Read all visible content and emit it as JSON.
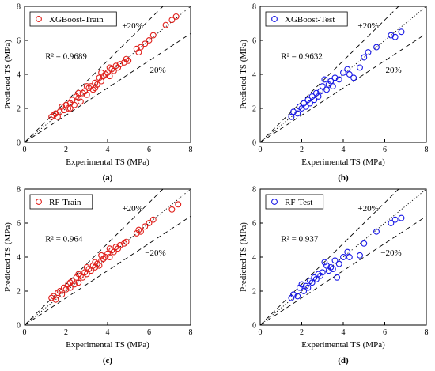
{
  "chart_data": [
    {
      "panel_label": "(a)",
      "type": "scatter",
      "xlabel": "Experimental TS (MPa)",
      "ylabel": "Predicted TS (MPa)",
      "xlim": [
        0,
        8
      ],
      "ylim": [
        0,
        8
      ],
      "xticks": [
        "0",
        "2",
        "4",
        "6",
        "8"
      ],
      "yticks": [
        "0",
        "2",
        "4",
        "6",
        "8"
      ],
      "legend": {
        "label": "XGBoost-Train",
        "placement": "top-left",
        "marker": "open-circle"
      },
      "r2_text": "R² = 0.9689",
      "band_labels": [
        "+20%",
        "−20%"
      ],
      "marker_color": "#e0201b",
      "series": [
        {
          "name": "XGBoost-Train",
          "points": [
            [
              1.3,
              1.5
            ],
            [
              1.4,
              1.6
            ],
            [
              1.5,
              1.7
            ],
            [
              1.6,
              1.5
            ],
            [
              1.7,
              1.8
            ],
            [
              1.8,
              2.1
            ],
            [
              1.9,
              1.9
            ],
            [
              2.0,
              2.2
            ],
            [
              2.1,
              2.0
            ],
            [
              2.2,
              2.3
            ],
            [
              2.3,
              2.5
            ],
            [
              2.4,
              2.2
            ],
            [
              2.5,
              2.7
            ],
            [
              2.6,
              2.6
            ],
            [
              2.7,
              2.4
            ],
            [
              2.8,
              2.9
            ],
            [
              2.9,
              3.0
            ],
            [
              3.0,
              2.8
            ],
            [
              3.1,
              3.2
            ],
            [
              3.2,
              3.3
            ],
            [
              3.3,
              3.1
            ],
            [
              3.4,
              3.5
            ],
            [
              3.5,
              3.4
            ],
            [
              3.6,
              3.8
            ],
            [
              3.7,
              3.6
            ],
            [
              3.8,
              3.9
            ],
            [
              3.9,
              4.0
            ],
            [
              4.0,
              4.1
            ],
            [
              4.1,
              3.9
            ],
            [
              4.2,
              4.3
            ],
            [
              4.3,
              4.2
            ],
            [
              4.4,
              4.5
            ],
            [
              4.5,
              4.4
            ],
            [
              4.6,
              4.6
            ],
            [
              4.8,
              4.7
            ],
            [
              4.9,
              4.9
            ],
            [
              5.0,
              4.8
            ],
            [
              5.4,
              5.5
            ],
            [
              5.5,
              5.3
            ],
            [
              5.6,
              5.6
            ],
            [
              5.8,
              5.8
            ],
            [
              6.0,
              6.0
            ],
            [
              6.2,
              6.3
            ],
            [
              6.8,
              6.9
            ],
            [
              7.1,
              7.2
            ],
            [
              7.3,
              7.4
            ],
            [
              2.2,
              2.0
            ],
            [
              2.6,
              2.9
            ],
            [
              3.0,
              3.3
            ],
            [
              3.4,
              3.2
            ],
            [
              3.7,
              4.1
            ],
            [
              4.1,
              4.4
            ]
          ]
        }
      ]
    },
    {
      "panel_label": "(b)",
      "type": "scatter",
      "xlabel": "Experimental TS (MPa)",
      "ylabel": "Predicted TS (MPa)",
      "xlim": [
        0,
        8
      ],
      "ylim": [
        0,
        8
      ],
      "xticks": [
        "0",
        "2",
        "4",
        "6",
        "8"
      ],
      "yticks": [
        "0",
        "2",
        "4",
        "6",
        "8"
      ],
      "legend": {
        "label": "XGBoost-Test",
        "placement": "top-left",
        "marker": "open-circle"
      },
      "r2_text": "R² = 0.9632",
      "band_labels": [
        "+20%",
        "−20%"
      ],
      "marker_color": "#1a1ae6",
      "series": [
        {
          "name": "XGBoost-Test",
          "points": [
            [
              1.5,
              1.5
            ],
            [
              1.6,
              1.8
            ],
            [
              1.8,
              1.7
            ],
            [
              1.9,
              2.1
            ],
            [
              2.0,
              2.0
            ],
            [
              2.1,
              2.3
            ],
            [
              2.2,
              2.1
            ],
            [
              2.3,
              2.5
            ],
            [
              2.4,
              2.3
            ],
            [
              2.5,
              2.7
            ],
            [
              2.6,
              2.5
            ],
            [
              2.7,
              2.9
            ],
            [
              2.8,
              2.7
            ],
            [
              2.9,
              3.0
            ],
            [
              3.0,
              3.3
            ],
            [
              3.1,
              3.7
            ],
            [
              3.2,
              3.1
            ],
            [
              3.3,
              3.4
            ],
            [
              3.4,
              3.6
            ],
            [
              3.5,
              3.3
            ],
            [
              3.6,
              3.8
            ],
            [
              3.8,
              3.7
            ],
            [
              4.0,
              4.1
            ],
            [
              4.2,
              4.3
            ],
            [
              4.3,
              4.0
            ],
            [
              4.5,
              3.8
            ],
            [
              4.8,
              4.4
            ],
            [
              5.0,
              5.0
            ],
            [
              5.2,
              5.3
            ],
            [
              5.6,
              5.6
            ],
            [
              6.3,
              6.3
            ],
            [
              6.5,
              6.2
            ],
            [
              6.8,
              6.5
            ]
          ]
        }
      ]
    },
    {
      "panel_label": "(c)",
      "type": "scatter",
      "xlabel": "Experimental TS (MPa)",
      "ylabel": "Predicted TS (MPa)",
      "xlim": [
        0,
        8
      ],
      "ylim": [
        0,
        8
      ],
      "xticks": [
        "0",
        "2",
        "4",
        "6",
        "8"
      ],
      "yticks": [
        "0",
        "2",
        "4",
        "6",
        "8"
      ],
      "legend": {
        "label": "RF-Train",
        "placement": "top-left",
        "marker": "open-circle"
      },
      "r2_text": "R² = 0.964",
      "band_labels": [
        "+20%",
        "−20%"
      ],
      "marker_color": "#e0201b",
      "series": [
        {
          "name": "RF-Train",
          "points": [
            [
              1.3,
              1.6
            ],
            [
              1.4,
              1.7
            ],
            [
              1.5,
              1.5
            ],
            [
              1.6,
              1.9
            ],
            [
              1.7,
              2.0
            ],
            [
              1.8,
              1.8
            ],
            [
              1.9,
              2.2
            ],
            [
              2.0,
              2.1
            ],
            [
              2.1,
              2.4
            ],
            [
              2.2,
              2.2
            ],
            [
              2.3,
              2.6
            ],
            [
              2.4,
              2.4
            ],
            [
              2.5,
              2.8
            ],
            [
              2.6,
              2.5
            ],
            [
              2.7,
              2.9
            ],
            [
              2.8,
              2.8
            ],
            [
              2.9,
              3.1
            ],
            [
              3.0,
              3.0
            ],
            [
              3.1,
              3.3
            ],
            [
              3.2,
              3.2
            ],
            [
              3.3,
              3.5
            ],
            [
              3.4,
              3.4
            ],
            [
              3.5,
              3.6
            ],
            [
              3.6,
              3.5
            ],
            [
              3.7,
              3.8
            ],
            [
              3.8,
              3.9
            ],
            [
              3.9,
              4.0
            ],
            [
              4.0,
              4.2
            ],
            [
              4.1,
              4.0
            ],
            [
              4.2,
              4.4
            ],
            [
              4.3,
              4.3
            ],
            [
              4.4,
              4.6
            ],
            [
              4.5,
              4.5
            ],
            [
              4.6,
              4.7
            ],
            [
              4.8,
              4.8
            ],
            [
              4.9,
              4.9
            ],
            [
              5.4,
              5.4
            ],
            [
              5.5,
              5.6
            ],
            [
              5.6,
              5.5
            ],
            [
              5.8,
              5.8
            ],
            [
              6.0,
              6.0
            ],
            [
              6.2,
              6.2
            ],
            [
              7.1,
              6.8
            ],
            [
              7.4,
              7.1
            ],
            [
              2.2,
              2.5
            ],
            [
              2.6,
              3.0
            ],
            [
              3.0,
              3.4
            ],
            [
              3.4,
              3.7
            ],
            [
              3.7,
              4.1
            ],
            [
              4.1,
              4.5
            ]
          ]
        }
      ]
    },
    {
      "panel_label": "(d)",
      "type": "scatter",
      "xlabel": "Experimental TS (MPa)",
      "ylabel": "Predicted TS (MPa)",
      "xlim": [
        0,
        8
      ],
      "ylim": [
        0,
        8
      ],
      "xticks": [
        "0",
        "2",
        "4",
        "6",
        "8"
      ],
      "yticks": [
        "0",
        "2",
        "4",
        "6",
        "8"
      ],
      "legend": {
        "label": "RF-Test",
        "placement": "top-left",
        "marker": "open-circle"
      },
      "r2_text": "R² = 0.937",
      "band_labels": [
        "+20%",
        "−20%"
      ],
      "marker_color": "#1a1ae6",
      "series": [
        {
          "name": "RF-Test",
          "points": [
            [
              1.5,
              1.6
            ],
            [
              1.6,
              1.8
            ],
            [
              1.8,
              1.7
            ],
            [
              1.9,
              2.2
            ],
            [
              2.0,
              2.4
            ],
            [
              2.1,
              2.0
            ],
            [
              2.2,
              2.3
            ],
            [
              2.3,
              2.2
            ],
            [
              2.4,
              2.6
            ],
            [
              2.5,
              2.5
            ],
            [
              2.6,
              2.8
            ],
            [
              2.7,
              2.7
            ],
            [
              2.8,
              3.0
            ],
            [
              2.9,
              2.9
            ],
            [
              3.0,
              3.1
            ],
            [
              3.1,
              3.7
            ],
            [
              3.2,
              3.5
            ],
            [
              3.3,
              3.2
            ],
            [
              3.4,
              3.4
            ],
            [
              3.5,
              3.3
            ],
            [
              3.6,
              3.8
            ],
            [
              3.7,
              2.8
            ],
            [
              3.8,
              3.6
            ],
            [
              4.0,
              4.0
            ],
            [
              4.2,
              4.3
            ],
            [
              4.3,
              4.0
            ],
            [
              4.8,
              4.1
            ],
            [
              5.0,
              4.8
            ],
            [
              5.6,
              5.5
            ],
            [
              6.3,
              6.0
            ],
            [
              6.5,
              6.2
            ],
            [
              6.8,
              6.3
            ]
          ]
        }
      ]
    }
  ]
}
